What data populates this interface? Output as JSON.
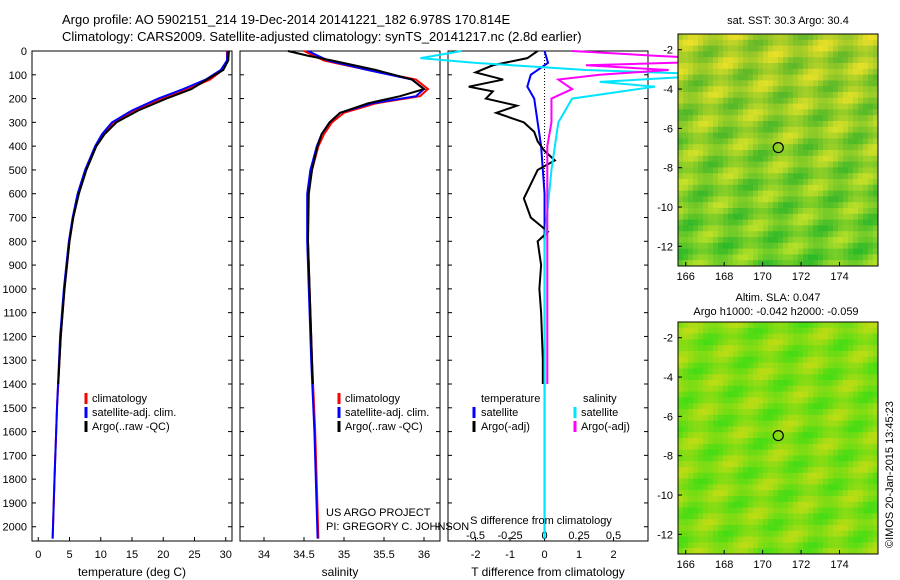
{
  "title": {
    "line1": "Argo profile: AO 5902151_214 19-Dec-2014 20141221_182 6.978S 170.814E",
    "line2": "Climatology: CARS2009. Satellite-adjusted climatology: synTS_20141217.nc (2.8d earlier)"
  },
  "depth_axis": {
    "ticks": [
      0,
      100,
      200,
      300,
      400,
      500,
      600,
      700,
      800,
      900,
      1000,
      1100,
      1200,
      1300,
      1400,
      1500,
      1600,
      1700,
      1800,
      1900,
      2000
    ],
    "range": [
      0,
      2060
    ]
  },
  "colors": {
    "climatology": "#ff0000",
    "satellite": "#0000ff",
    "argo": "#000000",
    "sat_salinity": "#00e5ff",
    "argo_salinity": "#ff00ff"
  },
  "chart_data": [
    {
      "type": "line",
      "id": "temperature",
      "xlabel": "temperature (deg C)",
      "xlim": [
        -1,
        31
      ],
      "xticks": [
        0,
        5,
        10,
        15,
        20,
        25,
        30
      ],
      "ylim": [
        0,
        2060
      ],
      "series": [
        {
          "name": "climatology",
          "depth": [
            0,
            40,
            80,
            120,
            160,
            200,
            250,
            300,
            350,
            400,
            500,
            600,
            700,
            800,
            1000,
            1200,
            1500,
            1800,
            2050
          ],
          "values": [
            30.2,
            30.2,
            29.5,
            27.5,
            24.0,
            20.0,
            15.5,
            12.0,
            10.4,
            9.2,
            7.6,
            6.4,
            5.6,
            5.0,
            4.2,
            3.6,
            3.0,
            2.6,
            2.3
          ]
        },
        {
          "name": "satellite-adj. clim.",
          "depth": [
            0,
            40,
            80,
            120,
            160,
            200,
            250,
            300,
            350,
            400,
            500,
            600,
            700,
            800,
            1000,
            1200,
            1500,
            1800,
            2050
          ],
          "values": [
            30.3,
            30.2,
            29.2,
            26.8,
            23.2,
            19.2,
            15.0,
            11.8,
            10.2,
            9.1,
            7.5,
            6.3,
            5.5,
            4.9,
            4.1,
            3.5,
            3.0,
            2.6,
            2.3
          ]
        },
        {
          "name": "Argo(..raw -QC)",
          "depth": [
            0,
            40,
            80,
            120,
            160,
            200,
            250,
            300,
            350,
            400,
            500,
            600,
            700,
            800,
            1000,
            1200,
            1400
          ],
          "values": [
            30.5,
            30.4,
            29.6,
            27.0,
            24.5,
            20.5,
            16.0,
            12.5,
            10.6,
            9.3,
            7.7,
            6.5,
            5.6,
            5.0,
            4.2,
            3.6,
            3.2
          ]
        }
      ],
      "legend": [
        "climatology",
        "satellite-adj. clim.",
        "Argo(..raw -QC)"
      ]
    },
    {
      "type": "line",
      "id": "salinity",
      "xlabel": "salinity",
      "xlim": [
        33.7,
        36.2
      ],
      "xticks": [
        34,
        34.5,
        35,
        35.5,
        36
      ],
      "xticklabels": [
        "34",
        "34.5",
        "35",
        "35.5",
        "36"
      ],
      "ylim": [
        0,
        2060
      ],
      "series": [
        {
          "name": "climatology",
          "depth": [
            0,
            40,
            80,
            120,
            160,
            190,
            220,
            260,
            300,
            350,
            400,
            500,
            600,
            800,
            1000,
            1300,
            1600,
            2050
          ],
          "values": [
            34.5,
            34.75,
            35.3,
            35.9,
            36.05,
            35.95,
            35.4,
            35.0,
            34.85,
            34.75,
            34.68,
            34.6,
            34.55,
            34.55,
            34.57,
            34.6,
            34.64,
            34.68
          ]
        },
        {
          "name": "satellite-adj. clim.",
          "depth": [
            0,
            40,
            80,
            120,
            160,
            190,
            220,
            260,
            300,
            350,
            400,
            500,
            600,
            800,
            1000,
            1300,
            1600,
            2050
          ],
          "values": [
            34.55,
            34.8,
            35.3,
            35.85,
            36.0,
            35.9,
            35.35,
            34.95,
            34.82,
            34.72,
            34.66,
            34.58,
            34.54,
            34.54,
            34.56,
            34.59,
            34.63,
            34.67
          ]
        },
        {
          "name": "Argo(..raw -QC)",
          "depth": [
            0,
            20,
            40,
            80,
            120,
            160,
            190,
            220,
            260,
            300,
            350,
            400,
            500,
            600,
            800,
            1000,
            1200,
            1400
          ],
          "values": [
            34.3,
            34.55,
            34.85,
            35.4,
            35.85,
            36.0,
            35.7,
            35.3,
            34.95,
            34.82,
            34.72,
            34.67,
            34.6,
            34.56,
            34.55,
            34.57,
            34.59,
            34.61
          ]
        }
      ],
      "legend": [
        "climatology",
        "satellite-adj. clim.",
        "Argo(..raw -QC)"
      ],
      "annotation": [
        "US ARGO PROJECT",
        "PI: GREGORY C. JOHNSON"
      ]
    },
    {
      "type": "line",
      "id": "difference",
      "xlabel_bottom": "T difference from climatology",
      "xlabel_top": "S difference from climatology",
      "xlim": [
        -2.8,
        3.0
      ],
      "xticks": [
        -2,
        -1,
        0,
        1,
        2
      ],
      "xticklabels": [
        "-2",
        "-1",
        "0",
        "1",
        "2"
      ],
      "top_ticks": [
        -0.5,
        -0.25,
        0,
        0.25,
        0.5
      ],
      "top_ticklabels": [
        "-0.5",
        "-0.25",
        "0",
        "0.25",
        "0.5"
      ],
      "ylim": [
        0,
        2060
      ],
      "series": [
        {
          "name": "temperature satellite",
          "depth": [
            0,
            50,
            100,
            150,
            200,
            300,
            400,
            600,
            800,
            1200,
            1600,
            2050
          ],
          "values": [
            0,
            0.1,
            -0.4,
            -0.5,
            -0.3,
            -0.2,
            -0.1,
            0,
            0,
            0,
            0,
            0
          ]
        },
        {
          "name": "temperature Argo(-adj)",
          "depth": [
            0,
            30,
            60,
            90,
            120,
            150,
            170,
            200,
            230,
            260,
            300,
            340,
            380,
            420,
            460,
            500,
            560,
            620,
            700,
            760,
            800,
            900,
            1000,
            1100,
            1300,
            1400
          ],
          "values": [
            -0.2,
            -0.5,
            -1.5,
            -2.0,
            -1.2,
            -2.2,
            -1.5,
            -1.7,
            -0.8,
            -1.4,
            -0.6,
            -0.3,
            -0.2,
            0,
            0.3,
            -0.2,
            -0.4,
            -0.6,
            -0.4,
            0.1,
            -0.2,
            -0.1,
            -0.15,
            -0.1,
            -0.05,
            -0.05
          ]
        },
        {
          "name": "salinity satellite",
          "depth": [
            0,
            30,
            50,
            80,
            100,
            130,
            150,
            200,
            300,
            500,
            800,
            1200,
            1600,
            2050
          ],
          "values": [
            -0.6,
            -0.9,
            -0.5,
            0.3,
            1.3,
            0.4,
            0.8,
            0.2,
            0.1,
            0.05,
            0,
            0,
            0,
            0
          ]
        },
        {
          "name": "salinity Argo(-adj)",
          "depth": [
            0,
            20,
            40,
            60,
            80,
            100,
            120,
            160,
            200,
            300,
            400,
            600,
            800,
            1000,
            1200,
            1400
          ],
          "values": [
            0.2,
            0.8,
            1.5,
            0.3,
            0.9,
            0.4,
            0.1,
            0.2,
            0.05,
            0.05,
            0.02,
            0.02,
            0.02,
            0.02,
            0.02,
            0.02
          ]
        }
      ],
      "legend": {
        "temperature_header": "temperature",
        "salinity_header": "salinity",
        "items": [
          "satellite",
          "Argo(-adj)",
          "satellite",
          "Argo(-adj)"
        ]
      }
    },
    {
      "type": "heatmap",
      "id": "sst_map",
      "title": "sat. SST: 30.3 Argo: 30.4",
      "xticks": [
        166,
        168,
        170,
        172,
        174
      ],
      "yticks": [
        -2,
        -4,
        -6,
        -8,
        -10,
        -12
      ],
      "xlim": [
        165.6,
        176
      ],
      "ylim": [
        -13,
        -1.2
      ],
      "marker": {
        "lon": 170.814,
        "lat": -6.978
      }
    },
    {
      "type": "heatmap",
      "id": "sla_map",
      "title": "Altim. SLA: 0.047",
      "subtitle": "Argo h1000: -0.042 h2000: -0.059",
      "xticks": [
        166,
        168,
        170,
        172,
        174
      ],
      "yticks": [
        -2,
        -4,
        -6,
        -8,
        -10,
        -12
      ],
      "xlim": [
        165.6,
        176
      ],
      "ylim": [
        -13,
        -1.2
      ],
      "marker": {
        "lon": 170.814,
        "lat": -6.978
      }
    }
  ],
  "credit": "©IMOS 20-Jan-2015 13:45:23"
}
